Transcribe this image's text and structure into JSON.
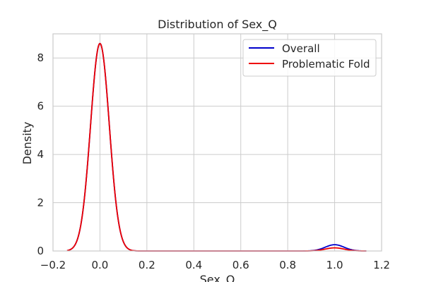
{
  "chart_data": {
    "type": "line",
    "title": "Distribution of Sex_Q",
    "xlabel": "Sex_Q",
    "ylabel": "Density",
    "xlim": [
      -0.2,
      1.2
    ],
    "ylim": [
      0,
      9.0
    ],
    "x_ticks": [
      -0.2,
      0.0,
      0.2,
      0.4,
      0.6,
      0.8,
      1.0,
      1.2
    ],
    "x_tick_labels": [
      "−0.2",
      "0.0",
      "0.2",
      "0.4",
      "0.6",
      "0.8",
      "1.0",
      "1.2"
    ],
    "y_ticks": [
      0,
      2,
      4,
      6,
      8
    ],
    "y_tick_labels": [
      "0",
      "2",
      "4",
      "6",
      "8"
    ],
    "grid": true,
    "legend_position": "top-right",
    "x_range": [
      -0.14,
      1.135
    ],
    "series": [
      {
        "name": "Overall",
        "color": "#0000cc",
        "components": [
          {
            "center": 0.0,
            "peak": 8.6,
            "sigma": 0.04
          },
          {
            "center": 1.0,
            "peak": 0.26,
            "sigma": 0.04
          }
        ]
      },
      {
        "name": "Problematic Fold",
        "color": "#ee0000",
        "components": [
          {
            "center": 0.0,
            "peak": 8.6,
            "sigma": 0.04
          },
          {
            "center": 1.0,
            "peak": 0.13,
            "sigma": 0.04
          }
        ]
      }
    ]
  }
}
